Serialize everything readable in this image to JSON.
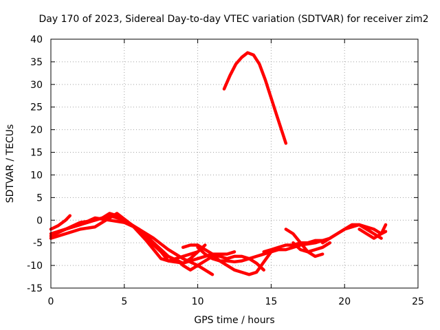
{
  "chart_data": {
    "type": "line",
    "title": "Day 170 of 2023, Sidereal Day-to-day VTEC variation (SDTVAR) for receiver zim2",
    "xlabel": "GPS time / hours",
    "ylabel": "SDTVAR / TECUs",
    "xlim": [
      0,
      25
    ],
    "ylim": [
      -15,
      40
    ],
    "xticks": [
      0,
      5,
      10,
      15,
      20,
      25
    ],
    "yticks": [
      -15,
      -10,
      -5,
      0,
      5,
      10,
      15,
      20,
      25,
      30,
      35,
      40
    ],
    "grid": true,
    "legend": "none",
    "color": "#ff0000",
    "series": [
      {
        "name": "track-1",
        "x": [
          0,
          0.5,
          1.0,
          1.3
        ],
        "y": [
          -2.0,
          -1.2,
          0.0,
          1.0
        ]
      },
      {
        "name": "track-2",
        "x": [
          0,
          1,
          2,
          3,
          4,
          4.5,
          5.5,
          6.5,
          7.5,
          8.0,
          9.0,
          9.5,
          10.0
        ],
        "y": [
          -4.0,
          -3.0,
          -2.0,
          -1.5,
          0.5,
          1.5,
          -1.0,
          -4.0,
          -7.0,
          -9.0,
          -9.5,
          -8.5,
          -7.0
        ]
      },
      {
        "name": "track-3",
        "x": [
          0,
          1,
          2,
          3,
          4,
          5,
          6,
          7,
          8,
          9,
          10,
          10.5,
          11.0
        ],
        "y": [
          -3.0,
          -2.0,
          -0.5,
          0.0,
          1.0,
          0.0,
          -2.0,
          -4.0,
          -6.5,
          -8.5,
          -10.0,
          -11.0,
          -12.0
        ]
      },
      {
        "name": "track-4",
        "x": [
          0,
          1,
          2,
          3,
          4,
          5,
          6,
          7,
          8,
          9,
          10,
          11,
          12,
          12.5
        ],
        "y": [
          -3.5,
          -2.0,
          -1.0,
          0.5,
          0.0,
          -0.5,
          -2.0,
          -5.0,
          -8.0,
          -9.5,
          -8.5,
          -7.5,
          -7.5,
          -7.0
        ]
      },
      {
        "name": "track-5",
        "x": [
          0.5,
          1.5,
          2.5,
          3.5,
          4.0,
          4.5,
          5.5,
          6.5,
          7.5,
          8.0,
          9.0,
          10.0,
          10.5
        ],
        "y": [
          -2.5,
          -1.5,
          -0.5,
          0.5,
          1.5,
          1.0,
          -1.0,
          -4.5,
          -8.5,
          -9.0,
          -8.0,
          -7.0,
          -5.5
        ]
      },
      {
        "name": "track-6",
        "x": [
          8.5,
          9.0,
          9.5,
          10.0,
          10.5,
          11.0
        ],
        "y": [
          -8.5,
          -10.0,
          -11.0,
          -10.0,
          -9.0,
          -8.0
        ]
      },
      {
        "name": "track-7",
        "x": [
          9.0,
          9.5,
          10.0,
          10.5,
          11.0,
          11.5,
          12.0,
          12.5,
          13.0,
          13.5,
          14.0,
          15.0
        ],
        "y": [
          -6.0,
          -5.5,
          -5.5,
          -6.5,
          -7.5,
          -9.0,
          -10.0,
          -11.0,
          -11.5,
          -12.0,
          -11.5,
          -7.0
        ]
      },
      {
        "name": "track-8",
        "x": [
          10.0,
          10.5,
          11.0,
          11.5,
          12.0,
          12.5,
          13.0,
          13.5,
          14.0,
          14.5,
          15.0,
          15.5,
          16.0,
          16.5,
          17.0,
          18.0,
          18.5
        ],
        "y": [
          -6.0,
          -7.5,
          -8.5,
          -9.0,
          -9.0,
          -9.2,
          -9.0,
          -8.5,
          -8.0,
          -7.5,
          -7.0,
          -6.5,
          -6.5,
          -6.0,
          -5.5,
          -5.0,
          -4.5
        ]
      },
      {
        "name": "track-9",
        "x": [
          11.0,
          11.5,
          12.0,
          12.5,
          13.0,
          13.5,
          14.0,
          14.5
        ],
        "y": [
          -7.5,
          -8.0,
          -8.5,
          -8.0,
          -8.0,
          -8.5,
          -9.5,
          -11.0
        ]
      },
      {
        "name": "track-10",
        "x": [
          11.8,
          12.2,
          12.6,
          13.0,
          13.4,
          13.8,
          14.2,
          14.6,
          15.0,
          15.4,
          15.8,
          16.0
        ],
        "y": [
          29.0,
          32.0,
          34.5,
          36.0,
          37.0,
          36.5,
          34.5,
          31.0,
          27.0,
          23.0,
          19.0,
          17.0
        ]
      },
      {
        "name": "track-11",
        "x": [
          14.5,
          15.0,
          15.5,
          16.0,
          16.5,
          17.0,
          17.5,
          18.0,
          18.5,
          19.0,
          19.5,
          20.0,
          20.5,
          21.0,
          21.5,
          22.0,
          22.5
        ],
        "y": [
          -7.0,
          -6.5,
          -6.0,
          -5.5,
          -5.5,
          -5.0,
          -5.0,
          -4.5,
          -4.5,
          -4.0,
          -3.0,
          -2.0,
          -1.0,
          -1.0,
          -2.0,
          -3.0,
          -4.0
        ]
      },
      {
        "name": "track-12",
        "x": [
          16.0,
          16.5,
          17.0,
          17.5,
          18.0,
          18.5
        ],
        "y": [
          -2.0,
          -3.0,
          -5.0,
          -7.0,
          -8.0,
          -7.5
        ]
      },
      {
        "name": "track-13",
        "x": [
          16.5,
          17.0,
          17.5,
          18.0,
          18.5,
          19.0
        ],
        "y": [
          -5.0,
          -6.5,
          -7.0,
          -6.5,
          -6.0,
          -5.0
        ]
      },
      {
        "name": "track-14",
        "x": [
          18.5,
          19.0,
          19.5,
          20.0,
          20.5,
          21.0,
          21.5,
          22.0,
          22.5,
          22.8
        ],
        "y": [
          -5.0,
          -4.0,
          -3.0,
          -2.0,
          -1.5,
          -1.0,
          -1.5,
          -2.0,
          -3.0,
          -2.5
        ]
      },
      {
        "name": "track-15",
        "x": [
          21.0,
          21.5,
          22.0,
          22.5,
          22.8
        ],
        "y": [
          -2.0,
          -3.0,
          -4.0,
          -3.0,
          -1.0
        ]
      }
    ]
  }
}
